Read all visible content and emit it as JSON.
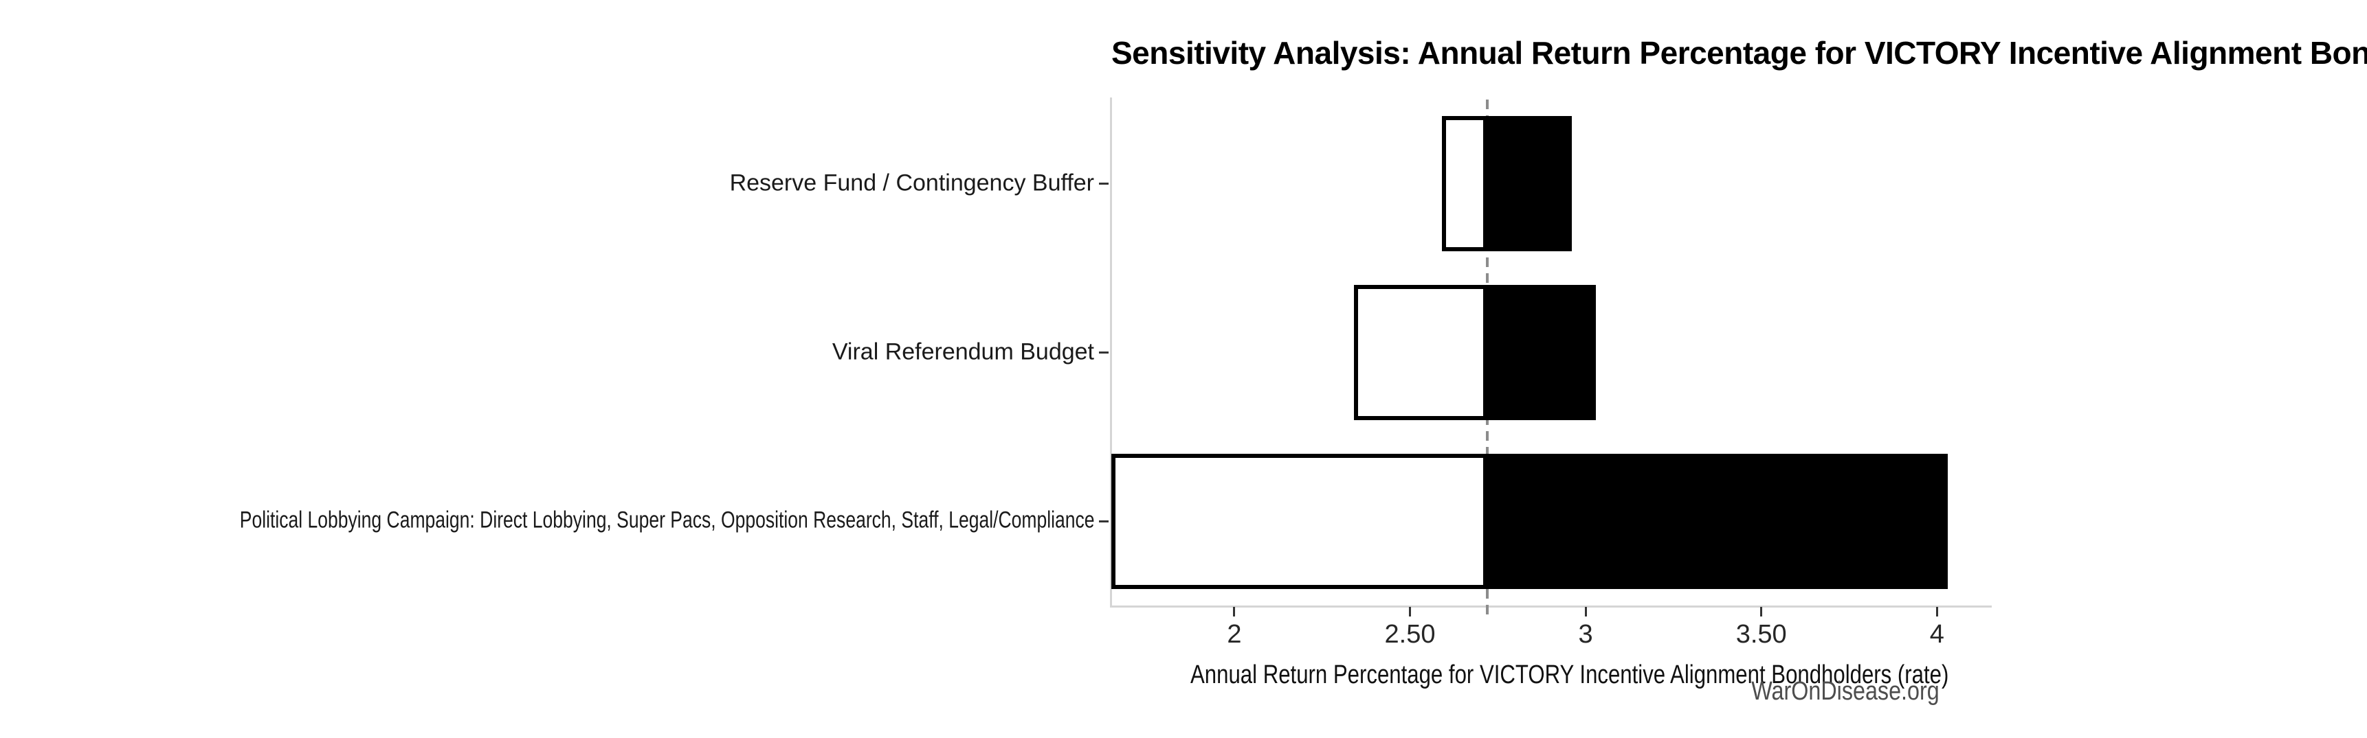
{
  "chart_data": {
    "type": "bar",
    "subtype": "tornado-sensitivity",
    "orientation": "horizontal",
    "title": "Sensitivity Analysis: Annual Return Percentage for VICTORY Incentive Alignment Bondholders",
    "xlabel": "Annual Return Percentage for VICTORY Incentive Alignment Bondholders (rate)",
    "watermark": "WarOnDisease.org",
    "base_value": 2.72,
    "xlim": [
      1.65,
      4.15
    ],
    "grid": "off",
    "x_ticks": [
      {
        "value": 2,
        "label": "2"
      },
      {
        "value": 2.5,
        "label": "2.50"
      },
      {
        "value": 3,
        "label": "3"
      },
      {
        "value": 3.5,
        "label": "3.50"
      },
      {
        "value": 4,
        "label": "4"
      }
    ],
    "rows": [
      {
        "label": "Reserve Fund / Contingency Buffer",
        "low": 2.59,
        "high": 2.96
      },
      {
        "label": "Viral Referendum Budget",
        "low": 2.34,
        "high": 3.03
      },
      {
        "label": "Political Lobbying Campaign: Direct Lobbying, Super Pacs, Opposition Research, Staff, Legal/Compliance",
        "low": 1.65,
        "high": 4.03
      }
    ],
    "colors": {
      "low_fill": "#ffffff",
      "high_fill": "#000000",
      "bar_border": "#000000",
      "base_line": "#8c8c8c",
      "spine": "#d5d5d5",
      "tick_text": "#262626",
      "watermark_text": "#4d4d4d"
    }
  }
}
